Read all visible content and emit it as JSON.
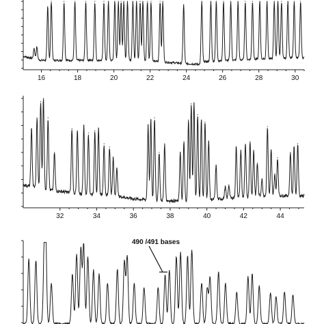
{
  "chart_data": [
    {
      "type": "line",
      "title": "",
      "xlabel": "",
      "ylabel": "",
      "xlim": [
        15,
        30.5
      ],
      "ylim": [
        0,
        100
      ],
      "grid": false,
      "x_ticks": [
        "16",
        "18",
        "20",
        "22",
        "24",
        "26",
        "28",
        "30"
      ],
      "series": [
        {
          "color": "#1a1a1a",
          "baseline": [
            [
              15.0,
              18
            ],
            [
              15.5,
              15
            ],
            [
              16.0,
              12
            ],
            [
              18.0,
              12
            ],
            [
              20.0,
              12
            ],
            [
              22.0,
              11
            ],
            [
              23.0,
              9
            ],
            [
              24.0,
              7
            ],
            [
              24.8,
              6
            ],
            [
              25.0,
              10
            ],
            [
              26.5,
              12
            ],
            [
              28.0,
              14
            ],
            [
              30.5,
              16
            ]
          ],
          "peaks": [
            [
              16.35,
              92
            ],
            [
              16.55,
              100
            ],
            [
              17.25,
              100
            ],
            [
              17.85,
              100
            ],
            [
              18.45,
              100
            ],
            [
              18.95,
              100
            ],
            [
              19.45,
              100
            ],
            [
              19.7,
              100
            ],
            [
              20.05,
              100
            ],
            [
              20.25,
              100
            ],
            [
              20.4,
              100
            ],
            [
              20.55,
              100
            ],
            [
              20.75,
              100
            ],
            [
              21.05,
              100
            ],
            [
              21.25,
              100
            ],
            [
              21.45,
              100
            ],
            [
              21.6,
              100
            ],
            [
              21.85,
              100
            ],
            [
              22.05,
              100
            ],
            [
              22.55,
              100
            ],
            [
              22.7,
              100
            ],
            [
              23.85,
              95
            ],
            [
              24.85,
              100
            ],
            [
              25.35,
              100
            ],
            [
              25.65,
              100
            ],
            [
              26.05,
              100
            ],
            [
              26.45,
              100
            ],
            [
              26.85,
              100
            ],
            [
              27.25,
              100
            ],
            [
              27.65,
              100
            ],
            [
              28.05,
              100
            ],
            [
              28.45,
              100
            ],
            [
              28.85,
              100
            ],
            [
              29.05,
              100
            ],
            [
              29.25,
              100
            ],
            [
              29.6,
              100
            ],
            [
              29.95,
              100
            ],
            [
              30.3,
              100
            ],
            [
              15.6,
              30
            ],
            [
              15.75,
              32
            ]
          ]
        }
      ]
    },
    {
      "type": "line",
      "title": "",
      "xlabel": "",
      "ylabel": "",
      "xlim": [
        30.0,
        45.3
      ],
      "ylim": [
        0,
        100
      ],
      "grid": false,
      "x_ticks": [
        "32",
        "34",
        "36",
        "38",
        "40",
        "42",
        "44"
      ],
      "series": [
        {
          "color": "#1a1a1a",
          "baseline": [
            [
              30.0,
              20
            ],
            [
              31.5,
              15
            ],
            [
              33.0,
              12
            ],
            [
              35.0,
              10
            ],
            [
              36.0,
              7
            ],
            [
              37.0,
              6
            ],
            [
              38.5,
              5
            ],
            [
              40.0,
              6
            ],
            [
              41.5,
              8
            ],
            [
              43.0,
              10
            ],
            [
              45.3,
              10
            ]
          ],
          "peaks": [
            [
              30.45,
              72
            ],
            [
              30.75,
              82
            ],
            [
              30.95,
              97
            ],
            [
              31.1,
              100
            ],
            [
              31.35,
              82
            ],
            [
              31.7,
              50
            ],
            [
              32.65,
              72
            ],
            [
              32.95,
              70
            ],
            [
              33.3,
              75
            ],
            [
              33.55,
              68
            ],
            [
              33.9,
              70
            ],
            [
              34.1,
              72
            ],
            [
              34.4,
              58
            ],
            [
              34.7,
              55
            ],
            [
              34.9,
              45
            ],
            [
              35.1,
              35
            ],
            [
              36.8,
              75
            ],
            [
              36.95,
              80
            ],
            [
              37.15,
              82
            ],
            [
              37.4,
              50
            ],
            [
              37.7,
              58
            ],
            [
              38.55,
              50
            ],
            [
              38.75,
              60
            ],
            [
              39.0,
              80
            ],
            [
              39.15,
              95
            ],
            [
              39.3,
              96
            ],
            [
              39.5,
              85
            ],
            [
              39.7,
              80
            ],
            [
              39.9,
              78
            ],
            [
              40.1,
              60
            ],
            [
              40.5,
              38
            ],
            [
              41.6,
              55
            ],
            [
              41.85,
              52
            ],
            [
              42.1,
              57
            ],
            [
              42.35,
              60
            ],
            [
              42.55,
              52
            ],
            [
              42.75,
              40
            ],
            [
              43.0,
              25
            ],
            [
              43.3,
              74
            ],
            [
              43.5,
              52
            ],
            [
              43.85,
              45
            ],
            [
              44.55,
              50
            ],
            [
              44.75,
              55
            ],
            [
              44.95,
              58
            ],
            [
              41.0,
              18
            ],
            [
              41.2,
              20
            ],
            [
              43.7,
              30
            ]
          ]
        }
      ]
    },
    {
      "type": "line",
      "title": "",
      "xlabel": "",
      "ylabel": "",
      "annotations": [
        "490 /491 bases"
      ],
      "grid": false,
      "series": [
        {
          "color": "#1a1a1a",
          "peaks_description": "Third panel sequencing trace (partially visible); peak positions in horizontal pixel fraction of panel width are not data units."
        }
      ]
    }
  ]
}
